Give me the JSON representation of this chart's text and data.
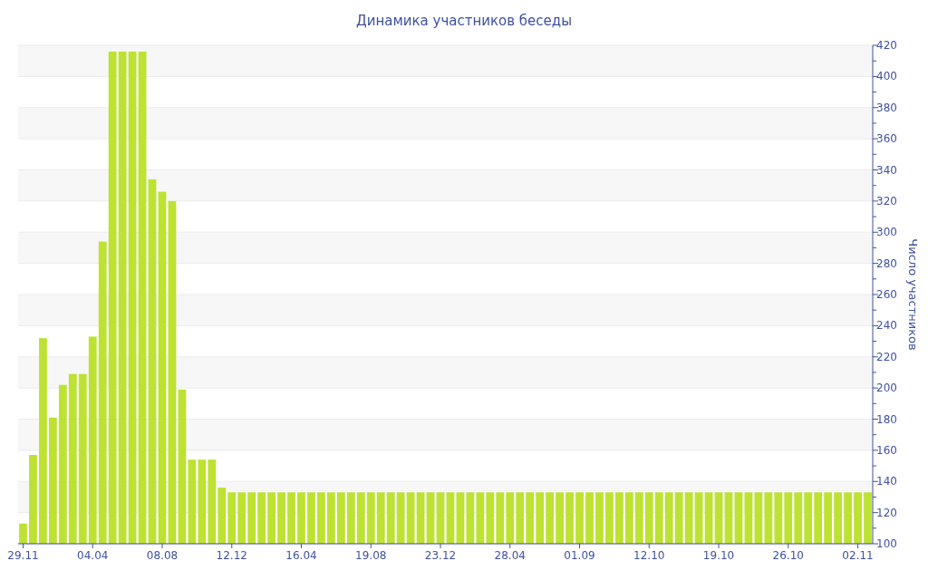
{
  "chart_data": {
    "type": "bar",
    "title": "Динамика участников беседы",
    "ylabel": "Число участников",
    "color": "#bde232",
    "categories": [
      "29.11",
      null,
      null,
      null,
      null,
      null,
      null,
      "04.04",
      null,
      null,
      null,
      null,
      null,
      null,
      "08.08",
      null,
      null,
      null,
      null,
      null,
      null,
      "12.12",
      null,
      null,
      null,
      null,
      null,
      null,
      "16.04",
      null,
      null,
      null,
      null,
      null,
      null,
      "19.08",
      null,
      null,
      null,
      null,
      null,
      null,
      "23.12",
      null,
      null,
      null,
      null,
      null,
      null,
      "28.04",
      null,
      null,
      null,
      null,
      null,
      null,
      "01.09",
      null,
      null,
      null,
      null,
      null,
      null,
      "12.10",
      null,
      null,
      null,
      null,
      null,
      null,
      "19.10",
      null,
      null,
      null,
      null,
      null,
      null,
      "26.10",
      null,
      null,
      null,
      null,
      null,
      null,
      "02.11",
      null
    ],
    "values": [
      113,
      157,
      232,
      181,
      202,
      209,
      209,
      233,
      294,
      416,
      416,
      416,
      416,
      334,
      326,
      320,
      199,
      154,
      154,
      154,
      136,
      133,
      133,
      133,
      133,
      133,
      133,
      133,
      133,
      133,
      133,
      133,
      133,
      133,
      133,
      133,
      133,
      133,
      133,
      133,
      133,
      133,
      133,
      133,
      133,
      133,
      133,
      133,
      133,
      133,
      133,
      133,
      133,
      133,
      133,
      133,
      133,
      133,
      133,
      133,
      133,
      133,
      133,
      133,
      133,
      133,
      133,
      133,
      133,
      133,
      133,
      133,
      133,
      133,
      133,
      133,
      133,
      133,
      133,
      133,
      133,
      133,
      133,
      133,
      133,
      133
    ],
    "ylim": [
      100,
      420
    ],
    "yticks": [
      100,
      {
        "value": 110,
        "label": null
      },
      120,
      {
        "value": 130,
        "label": null
      },
      140,
      {
        "value": 150,
        "label": null
      },
      160,
      {
        "value": 170,
        "label": null
      },
      180,
      {
        "value": 190,
        "label": null
      },
      200,
      {
        "value": 210,
        "label": null
      },
      220,
      {
        "value": 230,
        "label": null
      },
      240,
      {
        "value": 250,
        "label": null
      },
      260,
      {
        "value": 270,
        "label": null
      },
      280,
      {
        "value": 290,
        "label": null
      },
      300,
      {
        "value": 310,
        "label": null
      },
      320,
      {
        "value": 330,
        "label": null
      },
      340,
      {
        "value": 350,
        "label": null
      },
      360,
      {
        "value": 370,
        "label": null
      },
      380,
      {
        "value": 390,
        "label": null
      },
      400,
      {
        "value": 410,
        "label": null
      },
      420
    ],
    "grid": "y"
  }
}
